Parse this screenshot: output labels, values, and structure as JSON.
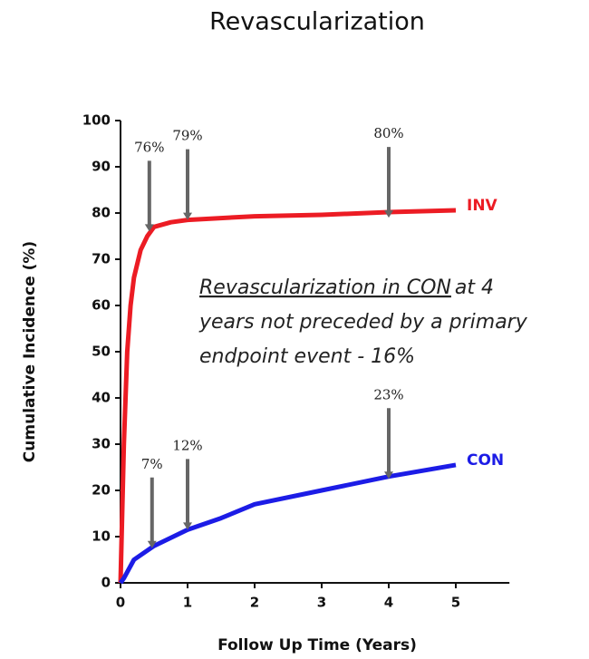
{
  "chart_data": {
    "type": "line",
    "title": "Revascularization",
    "x_label": "Follow Up Time (Years)",
    "y_label": "Cumulative Incidence (%)",
    "xlim": [
      0,
      5.8
    ],
    "ylim": [
      0,
      100
    ],
    "xticks": [
      0,
      1,
      2,
      3,
      4,
      5
    ],
    "yticks": [
      0,
      10,
      20,
      30,
      40,
      50,
      60,
      70,
      80,
      90,
      100
    ],
    "series": [
      {
        "name": "INV",
        "color": "#ec1c24",
        "x": [
          0,
          0.05,
          0.1,
          0.15,
          0.2,
          0.3,
          0.4,
          0.5,
          0.75,
          1,
          2,
          3,
          4,
          5
        ],
        "values": [
          0,
          30,
          50,
          60,
          66,
          72,
          75,
          77,
          78,
          78.5,
          79.3,
          79.6,
          80.2,
          80.6
        ]
      },
      {
        "name": "CON",
        "color": "#1c1ce6",
        "x": [
          0,
          0.05,
          0.2,
          0.5,
          1,
          1.5,
          2,
          3,
          4,
          5
        ],
        "values": [
          0,
          1,
          5,
          8,
          11.5,
          14,
          17,
          20,
          23,
          25.5
        ]
      }
    ],
    "arrows": [
      {
        "text": "76%",
        "x": 0.43,
        "y": 76
      },
      {
        "text": "79%",
        "x": 1,
        "y": 78.5
      },
      {
        "text": "80%",
        "x": 4,
        "y": 79
      },
      {
        "text": "7%",
        "x": 0.47,
        "y": 7.5
      },
      {
        "text": "12%",
        "x": 1,
        "y": 11.5
      },
      {
        "text": "23%",
        "x": 4,
        "y": 22.5
      }
    ],
    "note": {
      "underlined": "Revascularization in CON",
      "rest": "at 4",
      "lines": [
        "years not preceded by a primary",
        "endpoint event - 16%"
      ]
    }
  }
}
